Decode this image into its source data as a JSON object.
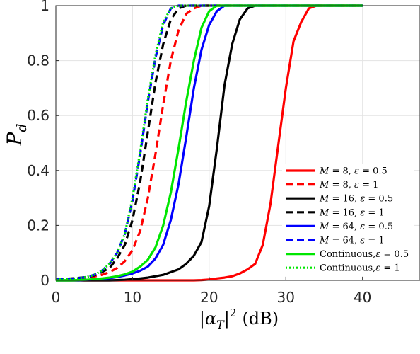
{
  "chart_data": {
    "type": "line",
    "title": "",
    "xlabel": "|α_T|² (dB)",
    "xlabel_main": "|α",
    "xlabel_sub": "T",
    "xlabel_sup": "2",
    "xlabel_tail": "(dB)",
    "ylabel": "P_d",
    "ylabel_main": "P",
    "ylabel_sub": "d",
    "xlim": [
      0,
      47.5
    ],
    "ylim": [
      0,
      1
    ],
    "xticks": [
      "0",
      "10",
      "20",
      "30",
      "40"
    ],
    "yticks": [
      "0",
      "0.2",
      "0.4",
      "0.6",
      "0.8",
      "1"
    ],
    "grid": true,
    "legend_position": "bottom-right",
    "x": [
      0,
      1,
      2,
      3,
      4,
      5,
      6,
      7,
      8,
      9,
      10,
      11,
      12,
      13,
      14,
      15,
      16,
      17,
      18,
      19,
      20,
      21,
      22,
      23,
      24,
      25,
      26,
      27,
      28,
      29,
      30,
      31,
      32,
      33,
      34,
      35,
      36,
      37,
      38,
      39,
      40
    ],
    "series": [
      {
        "name": "M = 8, ε = 0.5",
        "color": "#ff0000",
        "dash": "solid",
        "values": [
          0,
          0,
          0,
          0,
          0,
          0,
          0,
          0,
          0,
          0,
          0,
          0,
          0,
          0,
          0,
          0,
          0,
          0,
          0,
          0.001,
          0.003,
          0.007,
          0.01,
          0.015,
          0.025,
          0.04,
          0.06,
          0.13,
          0.28,
          0.49,
          0.7,
          0.87,
          0.94,
          0.99,
          1,
          1,
          1,
          1,
          1,
          1,
          1
        ]
      },
      {
        "name": "M = 8, ε = 1",
        "color": "#ff0000",
        "dash": "dashed",
        "values": [
          0.005,
          0.005,
          0.006,
          0.008,
          0.01,
          0.014,
          0.02,
          0.03,
          0.045,
          0.07,
          0.11,
          0.18,
          0.3,
          0.46,
          0.64,
          0.8,
          0.91,
          0.97,
          0.99,
          1,
          1,
          1,
          1,
          1,
          1,
          1,
          1,
          1,
          1,
          1,
          1,
          1,
          1,
          1,
          1,
          1,
          1,
          1,
          1,
          1,
          1
        ]
      },
      {
        "name": "M = 16, ε = 0.5",
        "color": "#000000",
        "dash": "solid",
        "values": [
          0,
          0,
          0,
          0,
          0,
          0,
          0,
          0,
          0.001,
          0.002,
          0.004,
          0.007,
          0.01,
          0.015,
          0.02,
          0.03,
          0.04,
          0.06,
          0.09,
          0.14,
          0.27,
          0.48,
          0.71,
          0.86,
          0.95,
          0.99,
          1,
          1,
          1,
          1,
          1,
          1,
          1,
          1,
          1,
          1,
          1,
          1,
          1,
          1,
          1
        ]
      },
      {
        "name": "M = 16, ε = 1",
        "color": "#000000",
        "dash": "dashed",
        "values": [
          0.005,
          0.005,
          0.007,
          0.009,
          0.012,
          0.018,
          0.03,
          0.045,
          0.08,
          0.13,
          0.22,
          0.36,
          0.54,
          0.72,
          0.86,
          0.95,
          0.99,
          1,
          1,
          1,
          1,
          1,
          1,
          1,
          1,
          1,
          1,
          1,
          1,
          1,
          1,
          1,
          1,
          1,
          1,
          1,
          1,
          1,
          1,
          1,
          1
        ]
      },
      {
        "name": "M = 64, ε = 0.5",
        "color": "#0000ff",
        "dash": "solid",
        "values": [
          0,
          0,
          0,
          0,
          0.002,
          0.003,
          0.005,
          0.008,
          0.012,
          0.018,
          0.025,
          0.035,
          0.05,
          0.08,
          0.13,
          0.22,
          0.35,
          0.52,
          0.7,
          0.84,
          0.93,
          0.98,
          1,
          1,
          1,
          1,
          1,
          1,
          1,
          1,
          1,
          1,
          1,
          1,
          1,
          1,
          1,
          1,
          1,
          1,
          1
        ]
      },
      {
        "name": "M = 64, ε = 1",
        "color": "#0000ff",
        "dash": "dashed",
        "values": [
          0.005,
          0.005,
          0.006,
          0.008,
          0.012,
          0.02,
          0.035,
          0.06,
          0.1,
          0.17,
          0.29,
          0.46,
          0.65,
          0.81,
          0.93,
          0.99,
          1,
          1,
          1,
          1,
          1,
          1,
          1,
          1,
          1,
          1,
          1,
          1,
          1,
          1,
          1,
          1,
          1,
          1,
          1,
          1,
          1,
          1,
          1,
          1,
          1
        ]
      },
      {
        "name": "Continuous, ε = 0.5",
        "color": "#00e600",
        "dash": "solid",
        "values": [
          0,
          0,
          0,
          0.001,
          0.002,
          0.004,
          0.007,
          0.01,
          0.015,
          0.022,
          0.032,
          0.05,
          0.075,
          0.12,
          0.2,
          0.32,
          0.48,
          0.65,
          0.8,
          0.92,
          0.98,
          1,
          1,
          1,
          1,
          1,
          1,
          1,
          1,
          1,
          1,
          1,
          1,
          1,
          1,
          1,
          1,
          1,
          1,
          1,
          1
        ]
      },
      {
        "name": "Continuous, ε = 1",
        "color": "#00e600",
        "dash": "dotted",
        "values": [
          0.005,
          0.005,
          0.006,
          0.008,
          0.012,
          0.02,
          0.035,
          0.06,
          0.1,
          0.17,
          0.3,
          0.47,
          0.66,
          0.82,
          0.94,
          0.99,
          1,
          1,
          1,
          1,
          1,
          1,
          1,
          1,
          1,
          1,
          1,
          1,
          1,
          1,
          1,
          1,
          1,
          1,
          1,
          1,
          1,
          1,
          1,
          1,
          1
        ]
      }
    ],
    "legend": [
      {
        "prefix": "M",
        "eq1": " = 8, ",
        "eps": "ε",
        "eq2": " = 0.5"
      },
      {
        "prefix": "M",
        "eq1": " = 8, ",
        "eps": "ε",
        "eq2": " = 1"
      },
      {
        "prefix": "M",
        "eq1": " = 16, ",
        "eps": "ε",
        "eq2": " = 0.5"
      },
      {
        "prefix": "M",
        "eq1": " = 16, ",
        "eps": "ε",
        "eq2": " = 1"
      },
      {
        "prefix": "M",
        "eq1": " = 64, ",
        "eps": "ε",
        "eq2": " = 0.5"
      },
      {
        "prefix": "M",
        "eq1": " = 64, ",
        "eps": "ε",
        "eq2": " = 1"
      },
      {
        "prefix": "Continuous,",
        "eq1": "",
        "eps": "ε",
        "eq2": " = 0.5"
      },
      {
        "prefix": "Continuous,",
        "eq1": "",
        "eps": "ε",
        "eq2": " = 1"
      }
    ]
  }
}
